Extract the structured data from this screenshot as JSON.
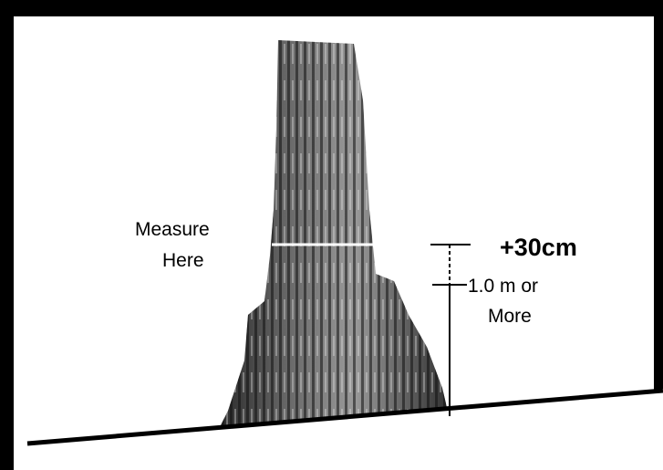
{
  "labels": {
    "measure": [
      "Measure",
      "Here"
    ],
    "offset": "+30cm",
    "height": [
      "1.0 m or",
      "More"
    ]
  }
}
